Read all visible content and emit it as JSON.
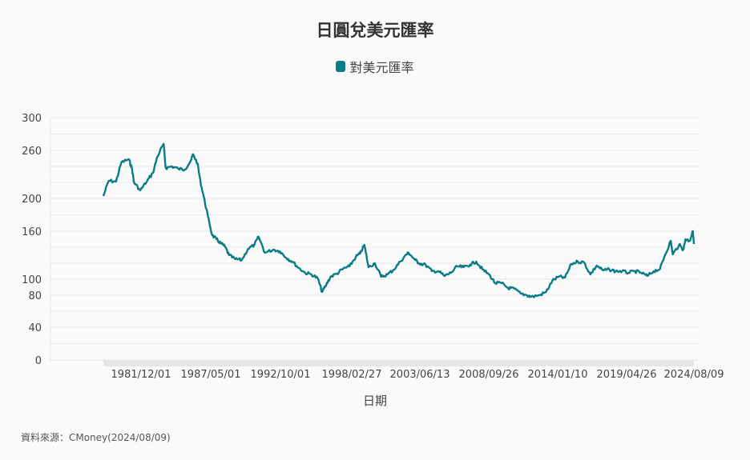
{
  "colors": {
    "series": "#0a7c86",
    "grid": "#e8e8e8",
    "navigator": "#e6e6e6",
    "background": "#fafafa"
  },
  "source_text": "資料來源：CMoney(2024/08/09)",
  "chart_data": {
    "type": "line",
    "title": "日圓兌美元匯率",
    "xlabel": "日期",
    "ylabel": "",
    "legend_position": "top-center",
    "grid": true,
    "series": [
      {
        "name": "對美元匯率",
        "x": [
          "1978/01",
          "1978/06",
          "1979/01",
          "1979/06",
          "1980/01",
          "1980/04",
          "1980/06",
          "1980/12",
          "1981/06",
          "1981/12",
          "1982/04",
          "1982/10",
          "1982/12",
          "1983/06",
          "1983/12",
          "1984/06",
          "1984/12",
          "1985/02",
          "1985/06",
          "1985/09",
          "1985/12",
          "1986/04",
          "1986/08",
          "1986/12",
          "1987/04",
          "1987/08",
          "1987/12",
          "1988/06",
          "1988/12",
          "1989/06",
          "1989/12",
          "1990/04",
          "1990/10",
          "1991/06",
          "1991/12",
          "1992/06",
          "1992/12",
          "1993/06",
          "1993/12",
          "1994/06",
          "1994/12",
          "1995/04",
          "1995/08",
          "1995/12",
          "1996/06",
          "1996/12",
          "1997/06",
          "1997/12",
          "1998/04",
          "1998/08",
          "1998/12",
          "1999/06",
          "1999/12",
          "2000/06",
          "2000/12",
          "2001/06",
          "2001/12",
          "2002/02",
          "2002/08",
          "2002/12",
          "2003/06",
          "2003/12",
          "2004/06",
          "2004/12",
          "2005/06",
          "2005/12",
          "2006/06",
          "2006/12",
          "2007/06",
          "2007/12",
          "2008/06",
          "2008/12",
          "2009/06",
          "2009/12",
          "2010/06",
          "2010/12",
          "2011/06",
          "2011/10",
          "2012/06",
          "2012/12",
          "2013/06",
          "2013/12",
          "2014/06",
          "2014/12",
          "2015/06",
          "2015/12",
          "2016/06",
          "2016/12",
          "2017/06",
          "2017/12",
          "2018/06",
          "2018/12",
          "2019/06",
          "2019/12",
          "2020/06",
          "2020/12",
          "2021/06",
          "2021/12",
          "2022/04",
          "2022/10",
          "2022/12",
          "2023/06",
          "2023/10",
          "2023/12",
          "2024/04",
          "2024/07",
          "2024/08"
        ],
        "values": [
          203,
          222,
          221,
          245,
          249,
          238,
          220,
          210,
          221,
          232,
          252,
          268,
          238,
          240,
          237,
          236,
          248,
          255,
          244,
          220,
          202,
          178,
          155,
          150,
          145,
          141,
          130,
          125,
          124,
          138,
          143,
          153,
          133,
          137,
          135,
          127,
          122,
          114,
          108,
          106,
          101,
          84,
          93,
          103,
          107,
          113,
          116,
          128,
          132,
          143,
          115,
          120,
          103,
          106,
          112,
          122,
          131,
          133,
          124,
          120,
          118,
          110,
          110,
          104,
          108,
          116,
          115,
          118,
          122,
          112,
          106,
          95,
          95,
          89,
          88,
          82,
          80,
          78,
          80,
          84,
          98,
          103,
          102,
          119,
          122,
          121,
          106,
          117,
          111,
          112,
          110,
          110,
          108,
          110,
          108,
          104,
          110,
          113,
          128,
          148,
          131,
          143,
          137,
          150,
          148,
          160,
          144
        ],
        "sampled": true
      }
    ],
    "x_tick_labels": [
      "1981/12/01",
      "1987/05/01",
      "1992/10/01",
      "1998/02/27",
      "2003/06/13",
      "2008/09/26",
      "2014/01/10",
      "2019/04/26",
      "2024/08/09"
    ],
    "x_range": [
      "1978/01",
      "2024/08"
    ],
    "y_ticks": [
      0,
      40,
      80,
      100,
      160,
      200,
      260,
      300
    ],
    "ylim": [
      0,
      300
    ]
  }
}
